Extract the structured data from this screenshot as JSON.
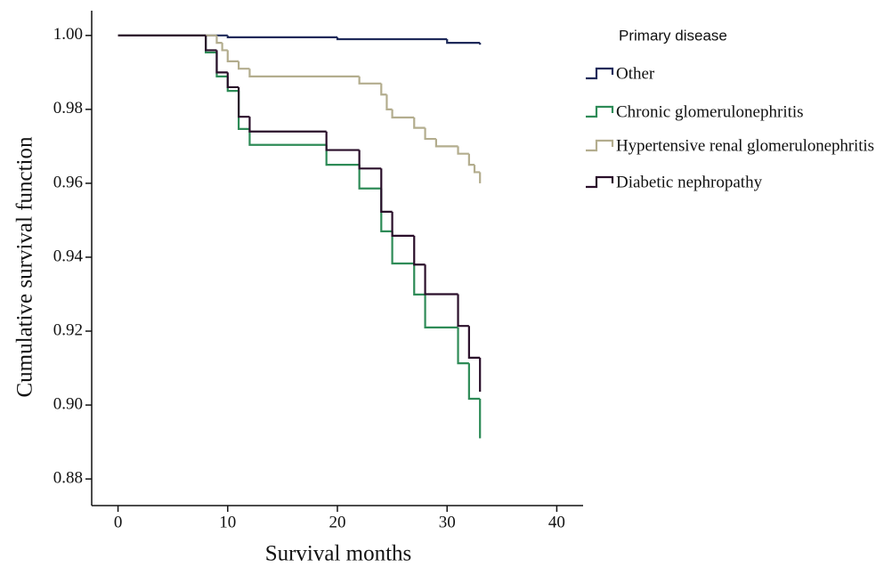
{
  "chart_data": {
    "type": "step",
    "x_label": "Survival months",
    "y_label": "Cumulative survival function",
    "legend_title": "Primary disease",
    "legend_position": "right",
    "xlim": [
      -2.4,
      42.4
    ],
    "xticks": [
      0,
      10,
      20,
      30,
      40
    ],
    "ylim": [
      0.8728,
      1.0067
    ],
    "yticks": [
      {
        "value": 1.0,
        "label": "1.00"
      },
      {
        "value": 0.98,
        "label": "0.98"
      },
      {
        "value": 0.96,
        "label": "0.96"
      },
      {
        "value": 0.94,
        "label": "0.94"
      },
      {
        "value": 0.92,
        "label": "0.92"
      },
      {
        "value": 0.9,
        "label": "0.90"
      },
      {
        "value": 0.88,
        "label": "0.88"
      }
    ],
    "series": [
      {
        "name": "Other",
        "color": "#1f2a5a",
        "x": [
          0,
          10,
          20,
          30,
          33
        ],
        "values": [
          1.0,
          0.9995,
          0.999,
          0.998,
          0.9975
        ]
      },
      {
        "name": "Chronic  glomerulonephritis",
        "color": "#2e8b57",
        "x": [
          0,
          8,
          9,
          10,
          11,
          12,
          19,
          22,
          24,
          25,
          27,
          28,
          31,
          32,
          33
        ],
        "values": [
          1.0,
          0.9954,
          0.9889,
          0.985,
          0.9747,
          0.9704,
          0.965,
          0.9586,
          0.947,
          0.9383,
          0.9299,
          0.921,
          0.9113,
          0.9017,
          0.891
        ]
      },
      {
        "name": "Hypertensive renal glomerulonephritis",
        "color": "#b3ad8e",
        "x": [
          0,
          9,
          9.5,
          10,
          11,
          12,
          22,
          24,
          24.5,
          25,
          27,
          28,
          29,
          31,
          32,
          32.5,
          33
        ],
        "values": [
          1.0,
          0.998,
          0.996,
          0.993,
          0.991,
          0.9889,
          0.987,
          0.984,
          0.98,
          0.9778,
          0.975,
          0.972,
          0.97,
          0.968,
          0.965,
          0.963,
          0.96
        ]
      },
      {
        "name": "Diabetic  nephropathy",
        "color": "#2a0f2a",
        "x": [
          0,
          8,
          9,
          10,
          11,
          12,
          19,
          22,
          24,
          25,
          27,
          28,
          31,
          32,
          33
        ],
        "values": [
          1.0,
          0.996,
          0.99,
          0.986,
          0.978,
          0.974,
          0.969,
          0.964,
          0.9523,
          0.9458,
          0.938,
          0.93,
          0.9214,
          0.9128,
          0.9036
        ]
      }
    ]
  }
}
